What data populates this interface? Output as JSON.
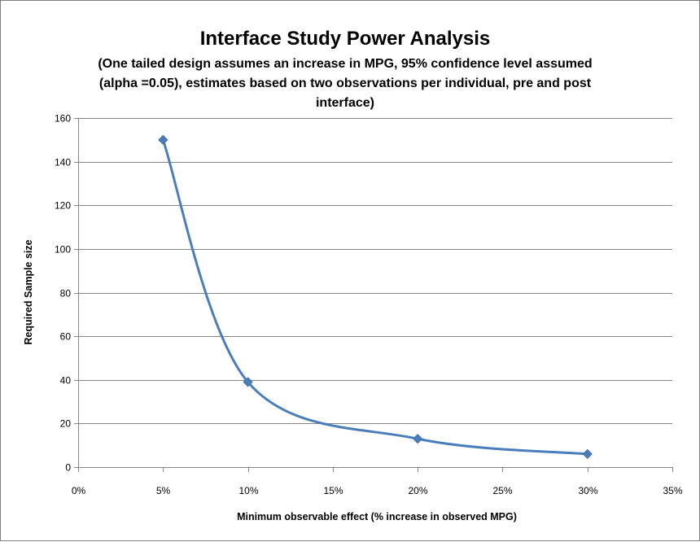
{
  "chart_data": {
    "type": "line",
    "title": "Interface Study Power Analysis",
    "subtitle_lines": [
      "(One tailed design assumes an increase in MPG, 95% confidence level assumed",
      "(alpha =0.05), estimates based on two observations per individual, pre and post",
      "interface)"
    ],
    "xlabel": "Minimum observable effect (% increase in observed MPG)",
    "ylabel": "Required Sample size",
    "xlim": [
      0,
      35
    ],
    "ylim": [
      0,
      160
    ],
    "x_ticks": [
      0,
      5,
      10,
      15,
      20,
      25,
      30,
      35
    ],
    "x_tick_labels": [
      "0%",
      "5%",
      "10%",
      "15%",
      "20%",
      "25%",
      "30%",
      "35%"
    ],
    "y_ticks": [
      0,
      20,
      40,
      60,
      80,
      100,
      120,
      140,
      160
    ],
    "y_tick_labels": [
      "0",
      "20",
      "40",
      "60",
      "80",
      "100",
      "120",
      "140",
      "160"
    ],
    "grid": true,
    "smooth": true,
    "series": [
      {
        "name": "Required Sample size",
        "x": [
          5,
          10,
          20,
          30
        ],
        "values": [
          150,
          39,
          13,
          6
        ]
      }
    ],
    "colors": {
      "series": "#4a7ebb",
      "grid": "#868686",
      "axis": "#868686"
    }
  }
}
